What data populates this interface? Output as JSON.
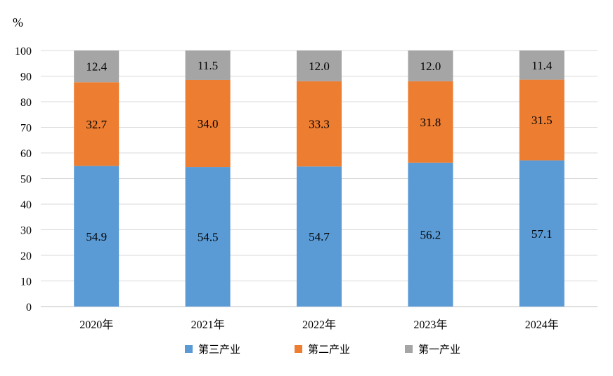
{
  "chart_data": {
    "type": "bar",
    "stacked": true,
    "unit": "%",
    "categories": [
      "2020年",
      "2021年",
      "2022年",
      "2023年",
      "2024年"
    ],
    "series": [
      {
        "name": "第三产业",
        "color": "#5b9bd5",
        "values": [
          54.9,
          54.5,
          54.7,
          56.2,
          57.1
        ]
      },
      {
        "name": "第二产业",
        "color": "#ed7d31",
        "values": [
          32.7,
          34.0,
          33.3,
          31.8,
          31.5
        ]
      },
      {
        "name": "第一产业",
        "color": "#a5a5a5",
        "values": [
          12.4,
          11.5,
          12.0,
          12.0,
          11.4
        ]
      }
    ],
    "ylim": [
      0,
      100
    ],
    "yticks": [
      0,
      10,
      20,
      30,
      40,
      50,
      60,
      70,
      80,
      90,
      100
    ],
    "grid": true,
    "legend": "bottom"
  }
}
